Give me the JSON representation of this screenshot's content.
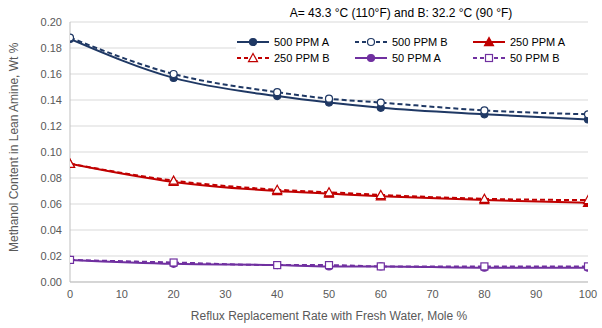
{
  "chart_data": {
    "type": "line",
    "title": "A= 43.3 °C (110°F)  and B: 32.2 °C (90 °F)",
    "x_label": "Reflux Replacement Rate with Fresh Water,  Mole %",
    "y_label": "Methanol Content in Lean Amine, Wt %",
    "x": [
      0,
      20,
      40,
      50,
      60,
      80,
      100
    ],
    "series": [
      {
        "name": "500 PPM A",
        "color": "#1F3864",
        "marker": "circle",
        "line_style": "solid",
        "values": [
          0.187,
          0.157,
          0.143,
          0.138,
          0.134,
          0.129,
          0.125
        ]
      },
      {
        "name": "500 PPM B",
        "color": "#1F3864",
        "marker": "circle_open",
        "line_style": "dashed",
        "values": [
          0.188,
          0.16,
          0.146,
          0.141,
          0.138,
          0.132,
          0.129
        ]
      },
      {
        "name": "250 PPM A",
        "color": "#C00000",
        "marker": "triangle",
        "line_style": "solid",
        "values": [
          0.091,
          0.077,
          0.07,
          0.068,
          0.066,
          0.063,
          0.061
        ]
      },
      {
        "name": "250 PPM B",
        "color": "#C00000",
        "marker": "triangle_open",
        "line_style": "dashed",
        "values": [
          0.091,
          0.078,
          0.071,
          0.069,
          0.067,
          0.064,
          0.063
        ]
      },
      {
        "name": "50 PPM A",
        "color": "#7030A0",
        "marker": "circle",
        "line_style": "solid",
        "values": [
          0.017,
          0.014,
          0.013,
          0.012,
          0.012,
          0.011,
          0.011
        ]
      },
      {
        "name": "50 PPM B",
        "color": "#7030A0",
        "marker": "square_open",
        "line_style": "dashed",
        "values": [
          0.017,
          0.015,
          0.013,
          0.013,
          0.012,
          0.012,
          0.012
        ]
      }
    ],
    "xlim": [
      0,
      100
    ],
    "xticks": [
      0,
      10,
      20,
      30,
      40,
      50,
      60,
      70,
      80,
      90,
      100
    ],
    "ylim": [
      0,
      0.2
    ],
    "yticks": [
      {
        "value": 0,
        "label": "0.00"
      },
      {
        "value": 0.02,
        "label": "0.02"
      },
      {
        "value": 0.04,
        "label": "0.04"
      },
      {
        "value": 0.06,
        "label": "0.06"
      },
      {
        "value": 0.08,
        "label": "0.08"
      },
      {
        "value": 0.1,
        "label": "0.10"
      },
      {
        "value": 0.12,
        "label": "0.12"
      },
      {
        "value": 0.14,
        "label": "0.14"
      },
      {
        "value": 0.16,
        "label": "0.16"
      },
      {
        "value": 0.18,
        "label": "0.18"
      },
      {
        "value": 0.2,
        "label": "0.20"
      }
    ],
    "grid": true,
    "legend": "top right"
  }
}
